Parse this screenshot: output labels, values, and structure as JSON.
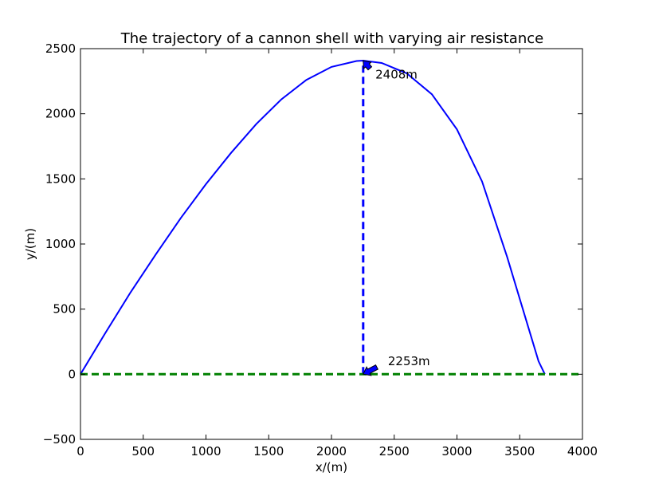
{
  "chart_data": {
    "type": "line",
    "title": "The trajectory of a cannon shell with varying air resistance",
    "xlabel": "x/(m)",
    "ylabel": "y/(m)",
    "xlim": [
      0,
      4000
    ],
    "ylim": [
      -500,
      2500
    ],
    "xticks": [
      0,
      500,
      1000,
      1500,
      2000,
      2500,
      3000,
      3500,
      4000
    ],
    "yticks": [
      -500,
      0,
      500,
      1000,
      1500,
      2000,
      2500
    ],
    "xtick_labels": [
      "0",
      "500",
      "1000",
      "1500",
      "2000",
      "2500",
      "3000",
      "3500",
      "4000"
    ],
    "ytick_labels": [
      "−500",
      "0",
      "500",
      "1000",
      "1500",
      "2000",
      "2500"
    ],
    "grid": false,
    "series": [
      {
        "color": "#0000ff",
        "style": "solid",
        "x": [
          0,
          200,
          400,
          600,
          800,
          1000,
          1200,
          1400,
          1600,
          1800,
          2000,
          2200,
          2253,
          2400,
          2600,
          2800,
          3000,
          3200,
          3400,
          3550,
          3650,
          3700
        ],
        "y": [
          0,
          320,
          630,
          920,
          1200,
          1460,
          1700,
          1920,
          2110,
          2260,
          2360,
          2405,
          2408,
          2390,
          2310,
          2150,
          1880,
          1480,
          900,
          420,
          100,
          0
        ]
      },
      {
        "color": "#0000ff",
        "style": "dashed",
        "x": [
          2253,
          2253
        ],
        "y": [
          0,
          2408
        ]
      },
      {
        "color": "#008000",
        "style": "dashed",
        "x": [
          0,
          4000
        ],
        "y": [
          0,
          0
        ]
      }
    ],
    "annotations": [
      {
        "text": "2408m",
        "xy": [
          2253,
          2408
        ],
        "text_at": [
          2350,
          2300
        ]
      },
      {
        "text": "2253m",
        "xy": [
          2253,
          0
        ],
        "text_at": [
          2450,
          100
        ]
      }
    ]
  }
}
